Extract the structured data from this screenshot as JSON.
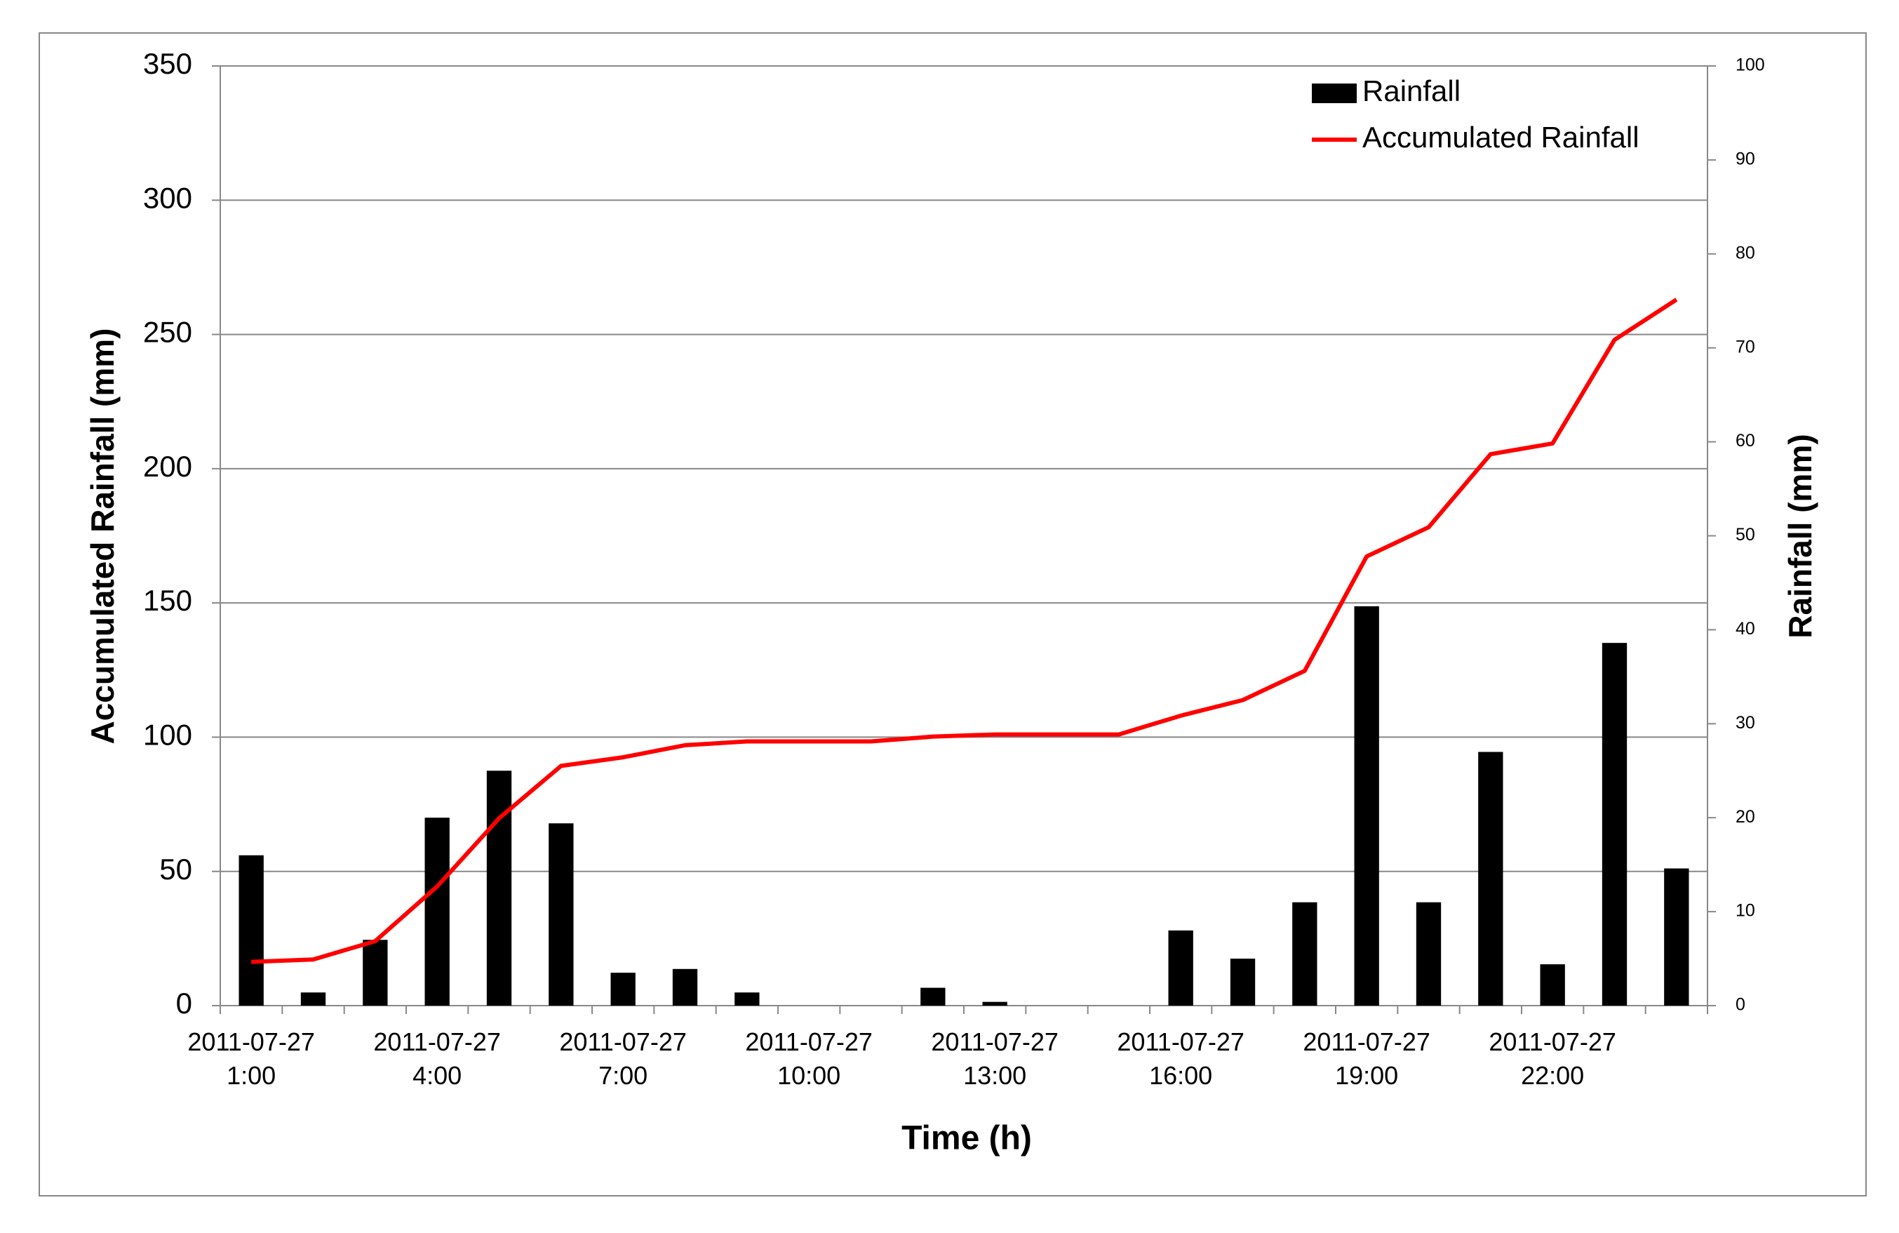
{
  "chart_data": {
    "type": "bar",
    "x_label": "Time (h)",
    "y_label": "Accumulated Rainfall (mm)",
    "y2_label": "Rainfall (mm)",
    "categories": [
      "2011-07-27\n1:00",
      null,
      null,
      "2011-07-27\n4:00",
      null,
      null,
      "2011-07-27\n7:00",
      null,
      null,
      "2011-07-27\n10:00",
      null,
      null,
      "2011-07-27\n13:00",
      null,
      null,
      "2011-07-27\n16:00",
      null,
      null,
      "2011-07-27\n19:00",
      null,
      null,
      "2011-07-27\n22:00",
      null,
      null
    ],
    "series": [
      {
        "name": "Rainfall",
        "type": "bar",
        "axis": "y2",
        "color": "#000000",
        "values": [
          16,
          1.4,
          7,
          20,
          25,
          19.4,
          3.5,
          3.9,
          1.4,
          0,
          0,
          1.9,
          0.4,
          0,
          0,
          8,
          5,
          11,
          42.5,
          11,
          27,
          4.4,
          38.6,
          14.6
        ]
      },
      {
        "name": "Accumulated Rainfall",
        "type": "line",
        "axis": "y",
        "color": "#ff0000",
        "values": [
          16.3,
          17.2,
          24,
          44.4,
          69.8,
          89.3,
          92.5,
          97,
          98.4,
          98.4,
          98.4,
          100.2,
          101,
          101,
          101,
          108,
          113.8,
          124.7,
          167.3,
          178.2,
          205.4,
          209.4,
          248,
          263
        ]
      }
    ],
    "ylim": [
      0,
      350
    ],
    "yticks": [
      0,
      50,
      100,
      150,
      200,
      250,
      300,
      350
    ],
    "y2lim": [
      0,
      100
    ],
    "y2ticks": [
      0,
      10,
      20,
      30,
      40,
      50,
      60,
      70,
      80,
      90,
      100
    ],
    "grid": true,
    "legend": "top-right"
  }
}
